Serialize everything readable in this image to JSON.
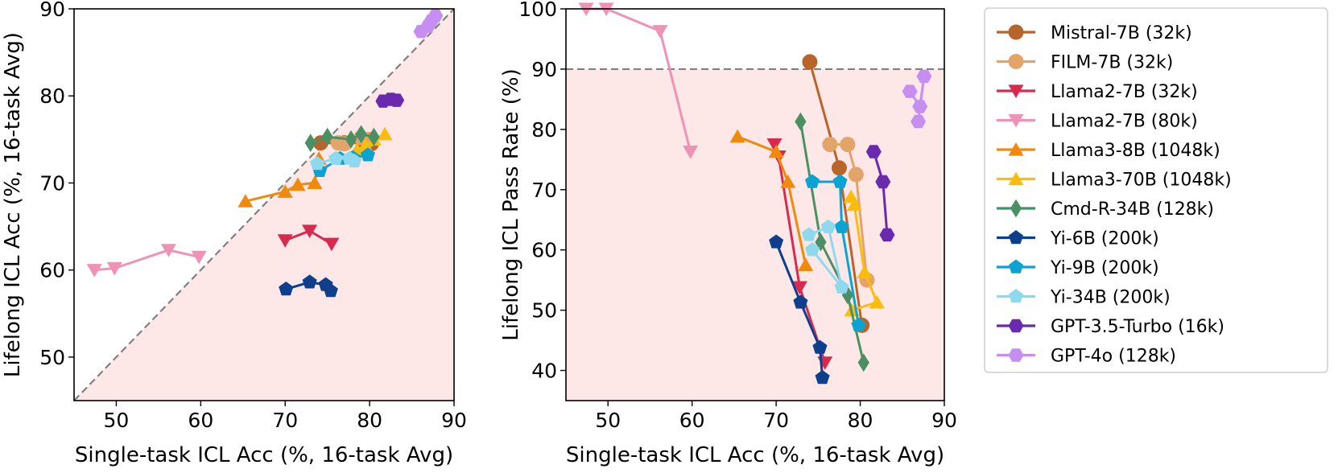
{
  "chart_data": [
    {
      "type": "scatter",
      "xlabel": "Single-task ICL Acc (%, 16-task Avg)",
      "ylabel": "Lifelong ICL Acc (%, 16-task Avg)",
      "xlim": [
        45,
        90
      ],
      "ylim": [
        45,
        90
      ],
      "xticks": [
        "50",
        "60",
        "70",
        "80",
        "90"
      ],
      "yticks": [
        "50",
        "60",
        "70",
        "80",
        "90"
      ],
      "reference_line": {
        "style": "dashed",
        "color": "#808080",
        "from": [
          45,
          45
        ],
        "to": [
          90,
          90
        ]
      },
      "shaded_region": "below diagonal",
      "shade_color": "#fde7e7",
      "grid": false,
      "series": [
        {
          "name": "Mistral-7B (32k)",
          "points": [
            [
              74.2,
              74.6
            ],
            [
              77.0,
              74.6
            ],
            [
              79.5,
              74.6
            ],
            [
              80.2,
              74.5
            ]
          ]
        },
        {
          "name": "FILM-7B (32k)",
          "points": [
            [
              76.3,
              74.6
            ],
            [
              77.0,
              74.5
            ],
            [
              79.0,
              75.2
            ],
            [
              80.0,
              75.0
            ]
          ]
        },
        {
          "name": "Llama2-7B (32k)",
          "points": [
            [
              70.0,
              63.4
            ],
            [
              72.9,
              64.5
            ],
            [
              75.5,
              63.0
            ]
          ]
        },
        {
          "name": "Llama2-7B (80k)",
          "points": [
            [
              47.4,
              60.0
            ],
            [
              49.8,
              60.2
            ],
            [
              56.2,
              62.3
            ],
            [
              59.8,
              61.5
            ]
          ]
        },
        {
          "name": "Llama3-8B (1048k)",
          "points": [
            [
              65.3,
              67.9
            ],
            [
              70.0,
              69.0
            ],
            [
              71.5,
              69.8
            ],
            [
              73.5,
              70.0
            ],
            [
              74.0,
              72.8
            ]
          ]
        },
        {
          "name": "Llama3-70B (1048k)",
          "points": [
            [
              78.5,
              73.8
            ],
            [
              79.5,
              74.3
            ],
            [
              80.5,
              75.0
            ],
            [
              81.8,
              75.6
            ]
          ]
        },
        {
          "name": "Cmd-R-34B (128k)",
          "points": [
            [
              73.0,
              74.6
            ],
            [
              75.0,
              75.3
            ],
            [
              77.8,
              75.0
            ],
            [
              79.0,
              75.6
            ],
            [
              80.5,
              75.3
            ]
          ]
        },
        {
          "name": "Yi-6B (200k)",
          "points": [
            [
              70.1,
              57.8
            ],
            [
              72.9,
              58.6
            ],
            [
              74.8,
              58.3
            ],
            [
              75.4,
              57.6
            ]
          ]
        },
        {
          "name": "Yi-9B (200k)",
          "points": [
            [
              74.1,
              71.4
            ],
            [
              76.5,
              72.8
            ],
            [
              78.0,
              72.9
            ],
            [
              79.8,
              73.2
            ]
          ]
        },
        {
          "name": "Yi-34B (200k)",
          "points": [
            [
              73.8,
              72.2
            ],
            [
              76.0,
              72.8
            ],
            [
              77.6,
              72.8
            ],
            [
              78.2,
              72.5
            ]
          ]
        },
        {
          "name": "GPT-3.5-Turbo (16k)",
          "points": [
            [
              81.6,
              79.4
            ],
            [
              82.5,
              79.6
            ],
            [
              83.2,
              79.5
            ]
          ]
        },
        {
          "name": "GPT-4o (128k)",
          "points": [
            [
              86.1,
              87.4
            ],
            [
              86.9,
              88.0
            ],
            [
              87.3,
              88.6
            ],
            [
              87.8,
              89.2
            ]
          ]
        }
      ]
    },
    {
      "type": "line",
      "xlabel": "Single-task ICL Acc (%, 16-task Avg)",
      "ylabel": "Lifelong ICL Pass Rate (%)",
      "xlim": [
        45,
        90
      ],
      "ylim": [
        35,
        100
      ],
      "xticks": [
        "50",
        "60",
        "70",
        "80",
        "90"
      ],
      "yticks": [
        "40",
        "50",
        "60",
        "70",
        "80",
        "90",
        "100"
      ],
      "reference_line": {
        "style": "dashed",
        "color": "#808080",
        "y": 90
      },
      "shaded_region": "below y=90",
      "shade_color": "#fde7e7",
      "grid": false,
      "series": [
        {
          "name": "Mistral-7B (32k)",
          "points": [
            [
              74.0,
              91.2
            ],
            [
              77.5,
              73.6
            ],
            [
              80.2,
              47.5
            ]
          ]
        },
        {
          "name": "FILM-7B (32k)",
          "points": [
            [
              76.4,
              77.5
            ],
            [
              78.5,
              77.5
            ],
            [
              79.5,
              72.5
            ],
            [
              80.8,
              55.0
            ]
          ]
        },
        {
          "name": "Llama2-7B (32k)",
          "points": [
            [
              69.8,
              77.5
            ],
            [
              70.3,
              75.5
            ],
            [
              72.8,
              53.8
            ],
            [
              75.8,
              41.3
            ]
          ]
        },
        {
          "name": "Llama2-7B (80k)",
          "points": [
            [
              47.4,
              100.0
            ],
            [
              49.8,
              100.0
            ],
            [
              56.2,
              96.3
            ],
            [
              59.8,
              76.3
            ]
          ]
        },
        {
          "name": "Llama3-8B (1048k)",
          "points": [
            [
              65.4,
              78.8
            ],
            [
              70.0,
              76.3
            ],
            [
              71.4,
              71.3
            ],
            [
              73.5,
              57.5
            ]
          ]
        },
        {
          "name": "Llama3-70B (1048k)",
          "points": [
            [
              78.9,
              68.8
            ],
            [
              79.3,
              67.5
            ],
            [
              80.5,
              56.3
            ],
            [
              82.0,
              51.3
            ],
            [
              79.0,
              50.0
            ]
          ]
        },
        {
          "name": "Cmd-R-34B (128k)",
          "points": [
            [
              72.9,
              81.3
            ],
            [
              75.3,
              61.3
            ],
            [
              78.5,
              52.5
            ],
            [
              80.4,
              41.3
            ]
          ]
        },
        {
          "name": "Yi-6B (200k)",
          "points": [
            [
              70.0,
              61.3
            ],
            [
              72.9,
              51.3
            ],
            [
              75.2,
              43.8
            ],
            [
              75.5,
              38.8
            ]
          ]
        },
        {
          "name": "Yi-9B (200k)",
          "points": [
            [
              74.3,
              71.3
            ],
            [
              77.6,
              71.3
            ],
            [
              77.8,
              63.8
            ],
            [
              79.8,
              47.5
            ]
          ]
        },
        {
          "name": "Yi-34B (200k)",
          "points": [
            [
              73.9,
              62.5
            ],
            [
              76.2,
              63.8
            ],
            [
              77.8,
              53.8
            ],
            [
              74.3,
              60.0
            ]
          ]
        },
        {
          "name": "GPT-3.5-Turbo (16k)",
          "points": [
            [
              81.6,
              76.3
            ],
            [
              82.7,
              71.3
            ],
            [
              83.2,
              62.5
            ]
          ]
        },
        {
          "name": "GPT-4o (128k)",
          "points": [
            [
              85.9,
              86.3
            ],
            [
              87.1,
              83.8
            ],
            [
              87.6,
              88.8
            ],
            [
              86.9,
              81.3
            ]
          ]
        }
      ]
    }
  ],
  "legend": {
    "placement": "right",
    "items": [
      {
        "label": "Mistral-7B (32k)",
        "color": "#b8652b",
        "marker": "circle"
      },
      {
        "label": "FILM-7B (32k)",
        "color": "#e2a469",
        "marker": "circle"
      },
      {
        "label": "Llama2-7B (32k)",
        "color": "#d82a4e",
        "marker": "triangle-down"
      },
      {
        "label": "Llama2-7B (80k)",
        "color": "#ee92b6",
        "marker": "triangle-down"
      },
      {
        "label": "Llama3-8B (1048k)",
        "color": "#ef8a0c",
        "marker": "triangle-up"
      },
      {
        "label": "Llama3-70B (1048k)",
        "color": "#fbbd0d",
        "marker": "triangle-up"
      },
      {
        "label": "Cmd-R-34B (128k)",
        "color": "#4b8f64",
        "marker": "diamond"
      },
      {
        "label": "Yi-6B (200k)",
        "color": "#0d3f8c",
        "marker": "pentagon"
      },
      {
        "label": "Yi-9B (200k)",
        "color": "#0aa3d2",
        "marker": "pentagon"
      },
      {
        "label": "Yi-34B (200k)",
        "color": "#8fd9ee",
        "marker": "pentagon"
      },
      {
        "label": "GPT-3.5-Turbo (16k)",
        "color": "#6a2aad",
        "marker": "hexagon"
      },
      {
        "label": "GPT-4o (128k)",
        "color": "#c58ef0",
        "marker": "hexagon"
      }
    ]
  }
}
